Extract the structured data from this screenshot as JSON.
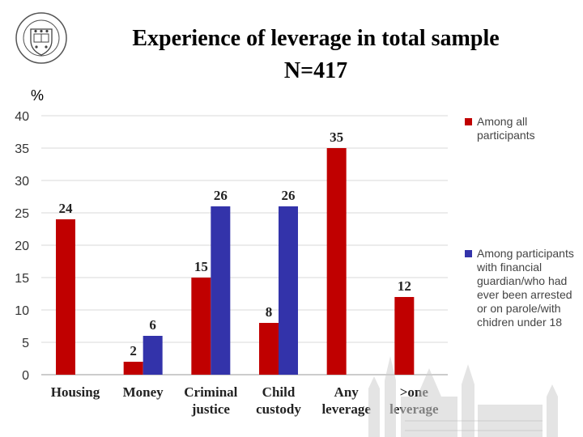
{
  "title_line1": "Experience of leverage in total sample",
  "title_line2": "N=417",
  "unit_label": "%",
  "colors": {
    "red": "#c00000",
    "blue": "#3333aa",
    "grid": "#d9d9d9"
  },
  "icons": {
    "seal": "university-seal-icon",
    "watermark": "cathedral-watermark-icon"
  },
  "chart_data": {
    "type": "bar",
    "categories": [
      [
        "Housing"
      ],
      [
        "Money"
      ],
      [
        "Criminal",
        "justice"
      ],
      [
        "Child",
        "custody"
      ],
      [
        "Any",
        "leverage"
      ],
      [
        ">one",
        "leverage"
      ]
    ],
    "series": [
      {
        "name": "Among all participants",
        "color": "#c00000",
        "values": [
          24,
          2,
          15,
          8,
          35,
          12
        ]
      },
      {
        "name": "Among participants with financial guardian/who had ever been arrested or on parole/with chidren under 18",
        "color": "#3333aa",
        "values": [
          null,
          6,
          26,
          26,
          null,
          null
        ]
      }
    ],
    "ylim": [
      0,
      40
    ],
    "yticks": [
      0,
      5,
      10,
      15,
      20,
      25,
      30,
      35,
      40
    ],
    "grid": true,
    "legend_position": "right"
  }
}
